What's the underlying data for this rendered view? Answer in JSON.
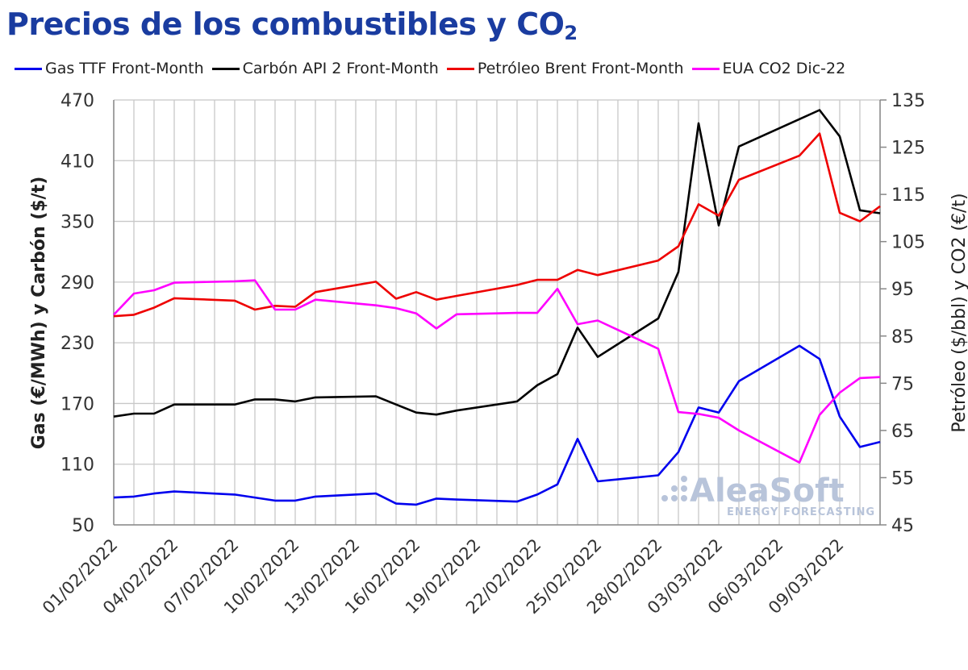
{
  "title_main": "Precios de los combustibles y CO",
  "title_sub": "2",
  "watermark": {
    "brand": "AleaSoft",
    "tagline": "ENERGY FORECASTING"
  },
  "colors": {
    "gas": "#0000ee",
    "coal": "#000000",
    "brent": "#ee0000",
    "co2": "#ff00ff",
    "title": "#1a3ca0",
    "grid": "#c8c8c8"
  },
  "chart_data": {
    "type": "line",
    "ylabel_left": "Gas (€/MWh) y Carbón ($/t)",
    "ylabel_right": "Petróleo ($/bbl) y CO2 (€/t)",
    "ylim_left": [
      50,
      470
    ],
    "yticks_left": [
      50,
      110,
      170,
      230,
      290,
      350,
      410,
      470
    ],
    "ylim_right": [
      45,
      135
    ],
    "yticks_right": [
      45,
      55,
      65,
      75,
      85,
      95,
      105,
      115,
      125,
      135
    ],
    "xticks": [
      "01/02/2022",
      "04/02/2022",
      "07/02/2022",
      "10/02/2022",
      "13/02/2022",
      "16/02/2022",
      "19/02/2022",
      "22/02/2022",
      "25/02/2022",
      "28/02/2022",
      "03/03/2022",
      "06/03/2022",
      "09/03/2022"
    ],
    "x": [
      "01/02/2022",
      "02/02/2022",
      "03/02/2022",
      "04/02/2022",
      "07/02/2022",
      "08/02/2022",
      "09/02/2022",
      "10/02/2022",
      "11/02/2022",
      "14/02/2022",
      "15/02/2022",
      "16/02/2022",
      "17/02/2022",
      "18/02/2022",
      "21/02/2022",
      "22/02/2022",
      "23/02/2022",
      "24/02/2022",
      "25/02/2022",
      "28/02/2022",
      "01/03/2022",
      "02/03/2022",
      "03/03/2022",
      "04/03/2022",
      "07/03/2022",
      "08/03/2022",
      "09/03/2022",
      "10/03/2022",
      "11/03/2022"
    ],
    "legend_position": "top",
    "grid": true,
    "series": [
      {
        "name": "Gas TTF Front-Month",
        "axis": "left",
        "color": "#0000ee",
        "values": [
          77,
          78,
          81,
          83,
          80,
          77,
          74,
          74,
          78,
          81,
          71,
          70,
          76,
          75,
          73,
          80,
          90,
          135,
          93,
          99,
          122,
          166,
          161,
          192,
          227,
          214,
          157,
          127,
          132
        ]
      },
      {
        "name": "Carbón API 2 Front-Month",
        "axis": "left",
        "color": "#000000",
        "values": [
          157,
          160,
          160,
          169,
          169,
          174,
          174,
          172,
          176,
          177,
          169,
          161,
          159,
          163,
          172,
          188,
          199,
          245,
          216,
          254,
          300,
          447,
          346,
          424,
          451,
          460,
          434,
          361,
          358
        ]
      },
      {
        "name": "Petróleo Brent Front-Month",
        "axis": "right",
        "color": "#ee0000",
        "values": [
          89.2,
          89.5,
          91.0,
          93.0,
          92.5,
          90.6,
          91.4,
          91.2,
          94.3,
          96.5,
          92.9,
          94.3,
          92.7,
          93.5,
          95.8,
          96.9,
          96.9,
          99.0,
          97.9,
          101.0,
          104.0,
          112.9,
          110.5,
          118.1,
          123.2,
          127.9,
          111.1,
          109.3,
          112.5
        ]
      },
      {
        "name": "EUA CO2 Dic-22",
        "axis": "right",
        "color": "#ff00ff",
        "values": [
          89.5,
          94.0,
          94.7,
          96.3,
          96.6,
          96.8,
          90.6,
          90.6,
          92.7,
          91.5,
          90.9,
          89.8,
          86.6,
          89.6,
          89.9,
          89.9,
          95.0,
          87.5,
          88.3,
          82.3,
          68.9,
          68.5,
          67.7,
          65.0,
          58.2,
          68.3,
          73.0,
          76.1,
          76.3
        ]
      }
    ]
  }
}
